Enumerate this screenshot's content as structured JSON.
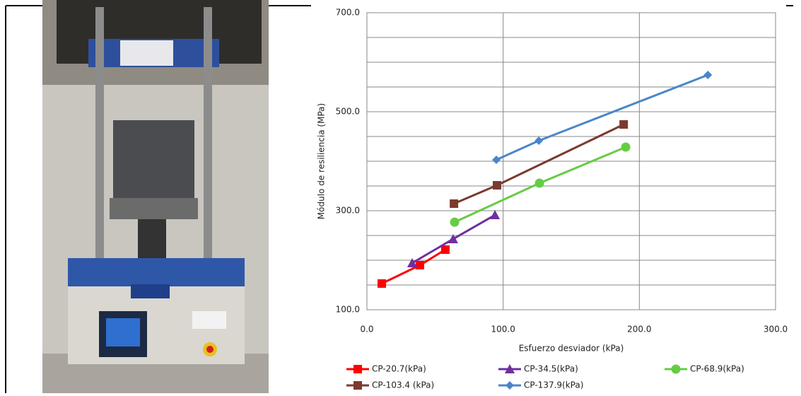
{
  "chart_data": {
    "type": "line",
    "xlabel": "Esfuerzo desviador (kPa)",
    "ylabel": "Módulo de resiliencia (MPa)",
    "xlim": [
      0,
      300
    ],
    "xticks": [
      {
        "value": 0,
        "label": "0.0"
      },
      {
        "value": 100,
        "label": "100.0"
      },
      {
        "value": 200,
        "label": "200.0"
      },
      {
        "value": 300,
        "label": "300.0"
      }
    ],
    "ylim": [
      100,
      700
    ],
    "yticks": [
      {
        "value": 100,
        "label": "100.0"
      },
      {
        "value": 300,
        "label": "300.0"
      },
      {
        "value": 500,
        "label": "500.0"
      },
      {
        "value": 700,
        "label": "700.0"
      }
    ],
    "y_minor_ticks": [
      150,
      200,
      250,
      350,
      400,
      450,
      550,
      600,
      650
    ],
    "grid": true,
    "legend": "bottom",
    "series": [
      {
        "name": "CP-20.7(kPa)",
        "color": "#ff0000",
        "marker": "square",
        "x": [
          10.9,
          38.9,
          57.6
        ],
        "values": [
          152.9,
          190.0,
          221.4
        ]
      },
      {
        "name": "CP-34.5(kPa)",
        "color": "#7030a0",
        "marker": "triangle",
        "x": [
          33.2,
          63.3,
          94.0
        ],
        "values": [
          194.3,
          242.9,
          291.4
        ]
      },
      {
        "name": "CP-68.9(kPa)",
        "color": "#66cc44",
        "marker": "circle",
        "x": [
          64.4,
          126.7,
          190.0
        ],
        "values": [
          277.0,
          355.7,
          428.6
        ]
      },
      {
        "name": "CP-103.4 (kPa)",
        "color": "#7b3a2e",
        "marker": "square",
        "x": [
          63.9,
          95.5,
          188.5
        ],
        "values": [
          314.3,
          351.4,
          474.3
        ]
      },
      {
        "name": "CP-137.9(kPa)",
        "color": "#4a86c8",
        "marker": "diamond",
        "x": [
          95.0,
          126.2,
          250.3
        ],
        "values": [
          402.9,
          441.4,
          574.3
        ]
      }
    ]
  }
}
